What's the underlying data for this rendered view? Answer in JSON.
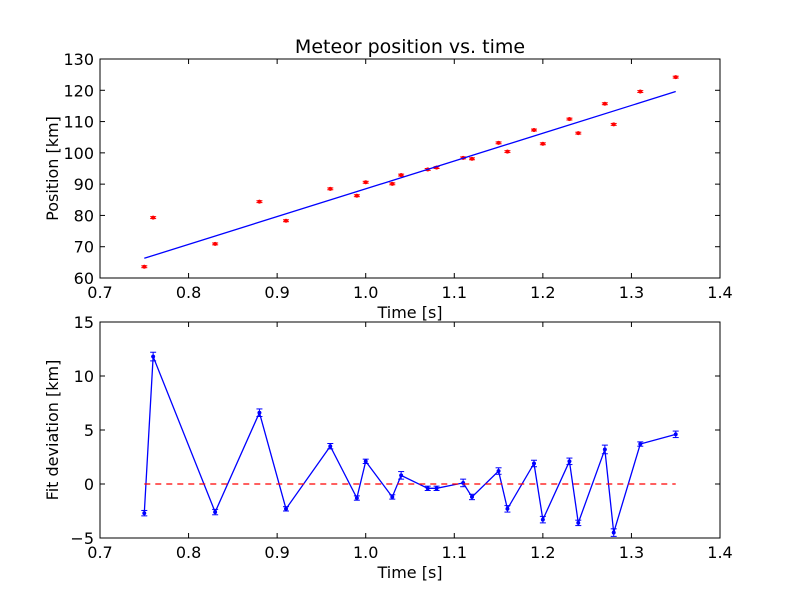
{
  "chart_data": [
    {
      "type": "scatter",
      "title": "Meteor position vs. time",
      "xlabel": "Time [s]",
      "ylabel": "Position [km]",
      "xlim": [
        0.7,
        1.4
      ],
      "ylim": [
        60,
        130
      ],
      "xticks": [
        "0.7",
        "0.8",
        "0.9",
        "1.0",
        "1.1",
        "1.2",
        "1.3",
        "1.4"
      ],
      "yticks": [
        "60",
        "70",
        "80",
        "90",
        "100",
        "110",
        "120",
        "130"
      ],
      "grid": false,
      "series": [
        {
          "style": "points-with-errorbars",
          "color": "#ff0000",
          "x": [
            0.75,
            0.76,
            0.83,
            0.88,
            0.91,
            0.96,
            0.99,
            1.0,
            1.03,
            1.04,
            1.07,
            1.08,
            1.11,
            1.12,
            1.15,
            1.16,
            1.19,
            1.2,
            1.23,
            1.24,
            1.27,
            1.28,
            1.31,
            1.35
          ],
          "y": [
            63.6,
            79.3,
            70.9,
            84.4,
            78.3,
            88.5,
            86.3,
            90.6,
            90.1,
            92.9,
            94.7,
            95.3,
            98.4,
            98.1,
            103.2,
            100.4,
            107.3,
            102.9,
            110.8,
            106.3,
            115.7,
            109.1,
            119.6,
            124.2
          ],
          "yerr": 0.3
        },
        {
          "style": "line",
          "color": "#0000ff",
          "x": [
            0.75,
            1.35
          ],
          "y": [
            66.3,
            119.6
          ]
        }
      ]
    },
    {
      "type": "line",
      "title": "",
      "xlabel": "Time [s]",
      "ylabel": "Fit deviation [km]",
      "xlim": [
        0.7,
        1.4
      ],
      "ylim": [
        -5,
        15
      ],
      "xticks": [
        "0.7",
        "0.8",
        "0.9",
        "1.0",
        "1.1",
        "1.2",
        "1.3",
        "1.4"
      ],
      "yticks": [
        "−5",
        "0",
        "5",
        "10",
        "15"
      ],
      "grid": false,
      "series": [
        {
          "style": "line-with-errorbars",
          "color": "#0000ff",
          "x": [
            0.75,
            0.76,
            0.83,
            0.88,
            0.91,
            0.96,
            0.99,
            1.0,
            1.03,
            1.04,
            1.07,
            1.08,
            1.11,
            1.12,
            1.15,
            1.16,
            1.19,
            1.2,
            1.23,
            1.24,
            1.27,
            1.28,
            1.31,
            1.35
          ],
          "y": [
            -2.7,
            11.8,
            -2.6,
            6.6,
            -2.3,
            3.5,
            -1.3,
            2.1,
            -1.2,
            0.8,
            -0.4,
            -0.4,
            0.1,
            -1.2,
            1.2,
            -2.3,
            1.9,
            -3.3,
            2.1,
            -3.6,
            3.2,
            -4.5,
            3.7,
            4.6
          ],
          "yerr": [
            0.25,
            0.4,
            0.25,
            0.35,
            0.2,
            0.25,
            0.2,
            0.2,
            0.2,
            0.35,
            0.2,
            0.2,
            0.35,
            0.25,
            0.3,
            0.3,
            0.3,
            0.3,
            0.3,
            0.25,
            0.4,
            0.35,
            0.2,
            0.3
          ]
        },
        {
          "style": "dashed-line",
          "color": "#ff0000",
          "x": [
            0.75,
            1.35
          ],
          "y": [
            0,
            0
          ]
        }
      ]
    }
  ]
}
